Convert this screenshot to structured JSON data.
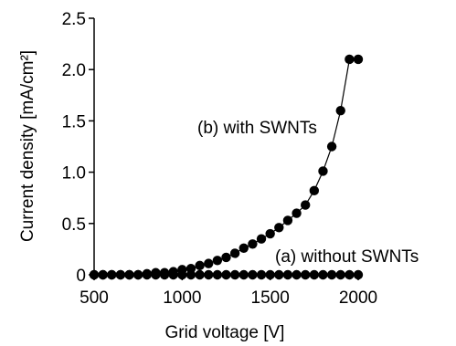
{
  "chart_data": {
    "type": "scatter",
    "xlabel": "Grid voltage [V]",
    "ylabel": "Current density [mA/cm²]",
    "xlim": [
      500,
      2000
    ],
    "ylim": [
      0,
      2.5
    ],
    "x_ticks": [
      "500",
      "1000",
      "1500",
      "2000"
    ],
    "y_ticks": [
      "0",
      "0.5",
      "1.0",
      "1.5",
      "2.0",
      "2.5"
    ],
    "grid": false,
    "annotations": [
      "(b) with SWNTs",
      "(a) without SWNTs"
    ],
    "series": [
      {
        "label": "(a) without SWNTs",
        "marker": "filled-circle",
        "line": false,
        "color": "#000000",
        "x": [
          500,
          550,
          600,
          650,
          700,
          750,
          800,
          850,
          900,
          950,
          1000,
          1050,
          1100,
          1150,
          1200,
          1250,
          1300,
          1350,
          1400,
          1450,
          1500,
          1550,
          1600,
          1650,
          1700,
          1750,
          1800,
          1850,
          1900,
          1950,
          2000
        ],
        "y": [
          0,
          0,
          0,
          0,
          0,
          0,
          0,
          0,
          0,
          0,
          0,
          0,
          0,
          0,
          0,
          0,
          0,
          0,
          0,
          0,
          0,
          0,
          0,
          0,
          0,
          0,
          0,
          0,
          0,
          0,
          0
        ]
      },
      {
        "label": "(b) with SWNTs",
        "marker": "filled-circle",
        "line": true,
        "color": "#000000",
        "x": [
          500,
          550,
          600,
          650,
          700,
          750,
          800,
          850,
          900,
          950,
          1000,
          1050,
          1100,
          1150,
          1200,
          1250,
          1300,
          1350,
          1400,
          1450,
          1500,
          1550,
          1600,
          1650,
          1700,
          1750,
          1800,
          1850,
          1900,
          1950,
          2000
        ],
        "y": [
          0,
          0,
          0,
          0,
          0,
          0,
          0.01,
          0.02,
          0.02,
          0.03,
          0.05,
          0.06,
          0.09,
          0.11,
          0.14,
          0.17,
          0.21,
          0.26,
          0.3,
          0.35,
          0.4,
          0.46,
          0.53,
          0.6,
          0.68,
          0.82,
          1.01,
          1.25,
          1.6,
          2.1,
          2.1
        ]
      }
    ]
  }
}
